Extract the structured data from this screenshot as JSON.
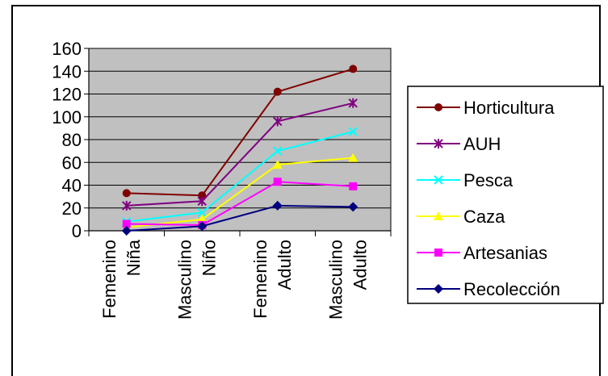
{
  "chart_data": {
    "type": "line",
    "categories": [
      [
        "Femenino",
        "Niña"
      ],
      [
        "Masculino",
        "Niño"
      ],
      [
        "Femenino",
        "Adulto"
      ],
      [
        "Masculino",
        "Adulto"
      ]
    ],
    "ylim": [
      0,
      160
    ],
    "yticks": [
      0,
      20,
      40,
      60,
      80,
      100,
      120,
      140,
      160
    ],
    "grid": true,
    "plot_background": "#C0C0C0",
    "legend_position": "right",
    "series": [
      {
        "name": "Horticultura",
        "color": "#800000",
        "marker": "circle",
        "values": [
          33,
          31,
          122,
          142
        ]
      },
      {
        "name": "AUH",
        "color": "#800080",
        "marker": "asterisk",
        "values": [
          22,
          26,
          96,
          112
        ]
      },
      {
        "name": "Pesca",
        "color": "#00FFFF",
        "marker": "x",
        "values": [
          8,
          16,
          70,
          87
        ]
      },
      {
        "name": "Caza",
        "color": "#FFFF00",
        "marker": "triangle",
        "values": [
          3,
          10,
          58,
          64
        ]
      },
      {
        "name": "Artesanias",
        "color": "#FF00FF",
        "marker": "square",
        "values": [
          6,
          5,
          43,
          39
        ]
      },
      {
        "name": "Recolección",
        "color": "#000080",
        "marker": "diamond",
        "values": [
          0,
          4,
          22,
          21
        ]
      }
    ]
  }
}
